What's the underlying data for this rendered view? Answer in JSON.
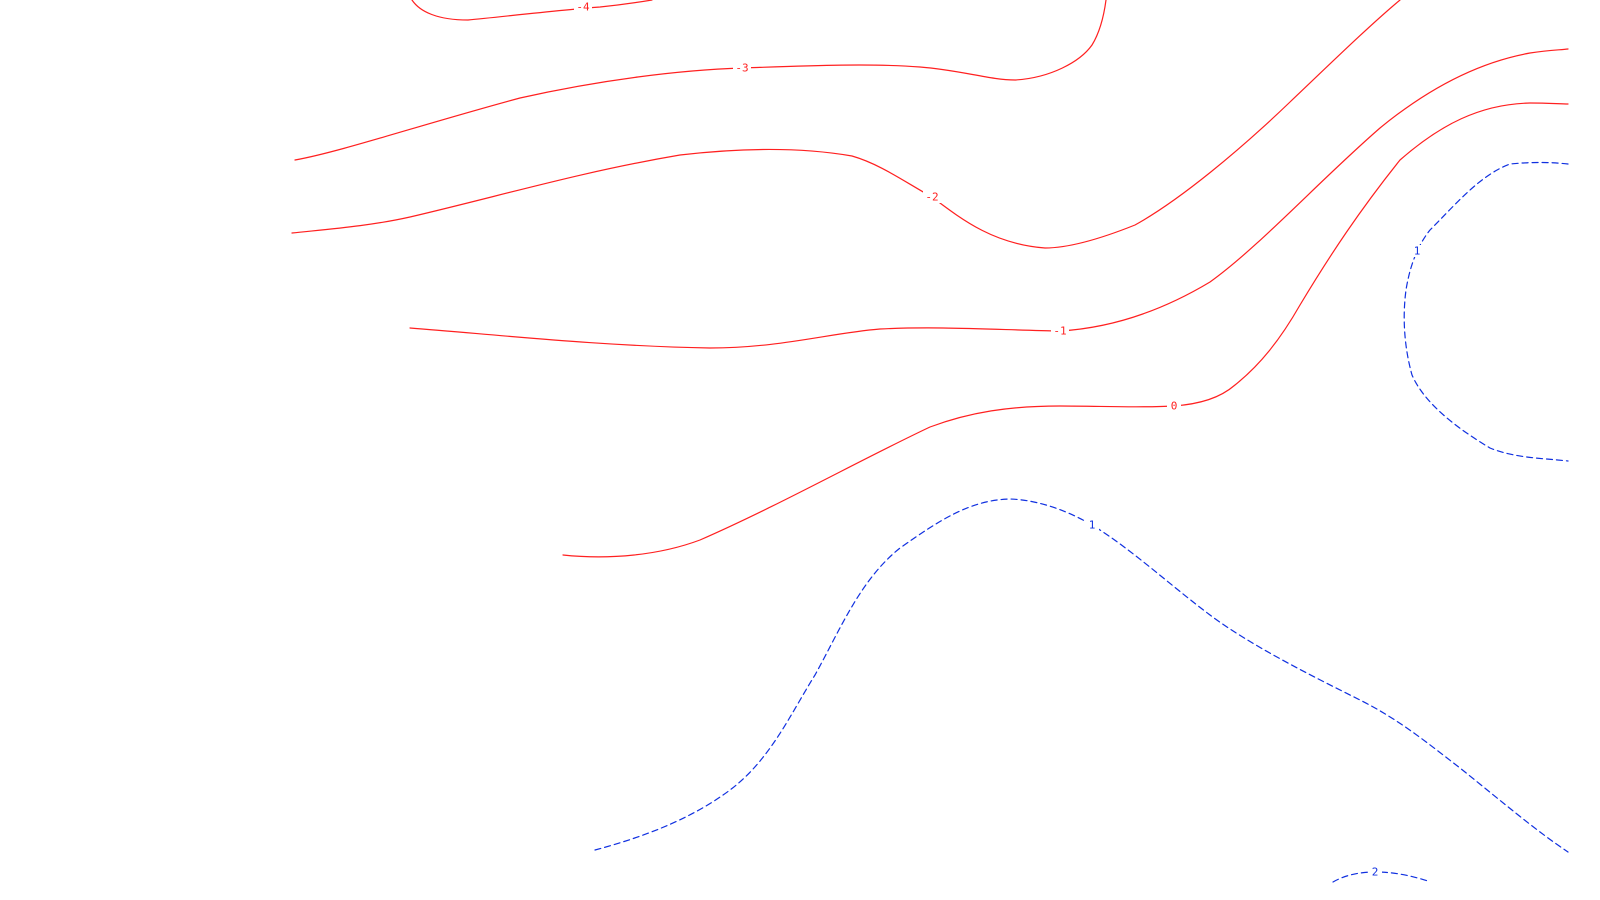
{
  "map": {
    "style": {
      "negative_color": "#ff2020",
      "positive_color": "#1030e0",
      "background": "#ffffff",
      "negative_line_style": "solid",
      "positive_line_style": "dashed"
    },
    "contours": [
      {
        "id": "contour-neg4",
        "value": -4,
        "label": "-4",
        "sign": "negative"
      },
      {
        "id": "contour-neg3",
        "value": -3,
        "label": "-3",
        "sign": "negative"
      },
      {
        "id": "contour-neg2",
        "value": -2,
        "label": "-2",
        "sign": "negative"
      },
      {
        "id": "contour-neg1",
        "value": -1,
        "label": "-1",
        "sign": "negative"
      },
      {
        "id": "contour-zero",
        "value": 0,
        "label": "0",
        "sign": "negative"
      },
      {
        "id": "contour-pos1-left",
        "value": 1,
        "label": "1",
        "sign": "positive"
      },
      {
        "id": "contour-pos1-right",
        "value": 1,
        "label": "1",
        "sign": "positive"
      },
      {
        "id": "contour-pos2",
        "value": 2,
        "label": "2",
        "sign": "positive"
      }
    ]
  }
}
